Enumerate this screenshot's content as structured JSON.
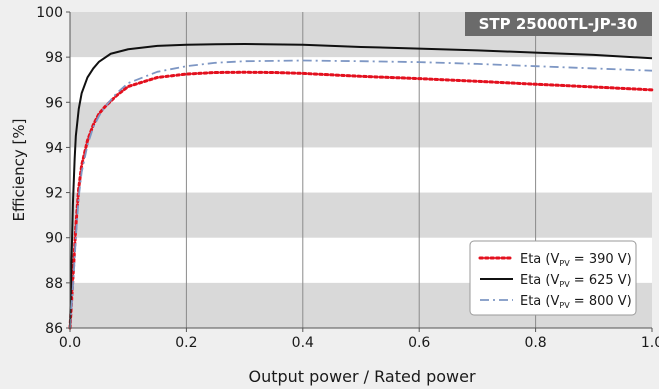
{
  "chart_data": {
    "type": "line",
    "title": "STP 25000TL-JP-30",
    "xlabel": "Output power / Rated power",
    "ylabel": "Efficiency [%]",
    "xlim": [
      0,
      1.0
    ],
    "ylim": [
      86,
      100
    ],
    "x_ticks": [
      "0.0",
      "0.2",
      "0.4",
      "0.6",
      "0.8",
      "1.0"
    ],
    "y_ticks": [
      "86",
      "88",
      "90",
      "92",
      "94",
      "96",
      "98",
      "100"
    ],
    "legend": {
      "position": "bottom-right",
      "entries": [
        {
          "prefix": "Eta (V",
          "sub": "PV",
          "suffix": " = 390 V)"
        },
        {
          "prefix": "Eta (V",
          "sub": "PV",
          "suffix": " = 625 V)"
        },
        {
          "prefix": "Eta (V",
          "sub": "PV",
          "suffix": " = 800 V)"
        }
      ]
    },
    "colors": {
      "series_390": "#e3101e",
      "series_625": "#111111",
      "series_800": "#7e97c4",
      "title_bg": "#6b6b6b",
      "band": "#d9d9d9",
      "plot_bg": "#ffffff",
      "grid": "#8a8a8a"
    },
    "series": [
      {
        "style": "dotted",
        "points": [
          [
            0.0,
            86.0
          ],
          [
            0.005,
            88.2
          ],
          [
            0.01,
            90.5
          ],
          [
            0.015,
            92.2
          ],
          [
            0.02,
            93.2
          ],
          [
            0.03,
            94.3
          ],
          [
            0.04,
            95.0
          ],
          [
            0.05,
            95.5
          ],
          [
            0.06,
            95.8
          ],
          [
            0.08,
            96.3
          ],
          [
            0.1,
            96.7
          ],
          [
            0.15,
            97.1
          ],
          [
            0.2,
            97.25
          ],
          [
            0.25,
            97.32
          ],
          [
            0.3,
            97.33
          ],
          [
            0.35,
            97.32
          ],
          [
            0.4,
            97.28
          ],
          [
            0.5,
            97.15
          ],
          [
            0.6,
            97.05
          ],
          [
            0.7,
            96.93
          ],
          [
            0.8,
            96.8
          ],
          [
            0.9,
            96.68
          ],
          [
            1.0,
            96.55
          ]
        ]
      },
      {
        "style": "solid",
        "points": [
          [
            0.0,
            86.0
          ],
          [
            0.002,
            88.3
          ],
          [
            0.005,
            91.5
          ],
          [
            0.008,
            93.5
          ],
          [
            0.01,
            94.5
          ],
          [
            0.015,
            95.7
          ],
          [
            0.02,
            96.4
          ],
          [
            0.03,
            97.1
          ],
          [
            0.04,
            97.5
          ],
          [
            0.05,
            97.8
          ],
          [
            0.07,
            98.15
          ],
          [
            0.1,
            98.35
          ],
          [
            0.15,
            98.5
          ],
          [
            0.2,
            98.55
          ],
          [
            0.25,
            98.57
          ],
          [
            0.3,
            98.58
          ],
          [
            0.4,
            98.55
          ],
          [
            0.5,
            98.45
          ],
          [
            0.6,
            98.38
          ],
          [
            0.7,
            98.3
          ],
          [
            0.8,
            98.2
          ],
          [
            0.9,
            98.1
          ],
          [
            1.0,
            97.95
          ]
        ]
      },
      {
        "style": "dashdot",
        "points": [
          [
            0.0,
            86.0
          ],
          [
            0.005,
            87.8
          ],
          [
            0.01,
            90.0
          ],
          [
            0.015,
            91.8
          ],
          [
            0.02,
            92.9
          ],
          [
            0.03,
            94.1
          ],
          [
            0.04,
            94.9
          ],
          [
            0.05,
            95.4
          ],
          [
            0.06,
            95.8
          ],
          [
            0.08,
            96.4
          ],
          [
            0.1,
            96.85
          ],
          [
            0.15,
            97.35
          ],
          [
            0.2,
            97.6
          ],
          [
            0.25,
            97.75
          ],
          [
            0.3,
            97.82
          ],
          [
            0.4,
            97.85
          ],
          [
            0.5,
            97.82
          ],
          [
            0.6,
            97.78
          ],
          [
            0.7,
            97.7
          ],
          [
            0.8,
            97.6
          ],
          [
            0.9,
            97.5
          ],
          [
            1.0,
            97.4
          ]
        ]
      }
    ]
  }
}
